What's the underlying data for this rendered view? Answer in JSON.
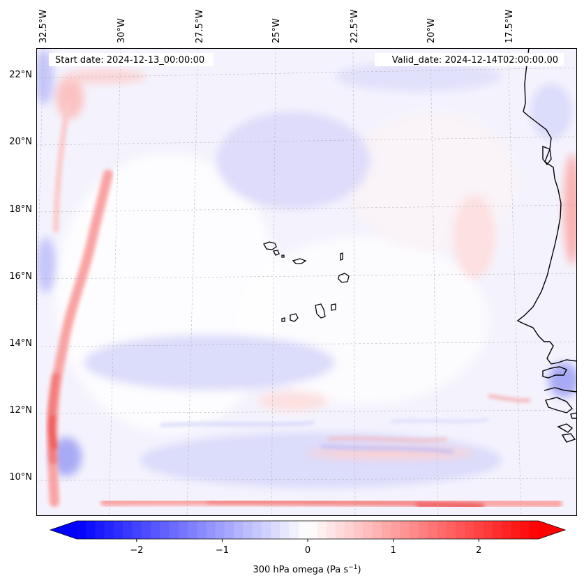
{
  "map": {
    "start_date_text": "Start date: 2024-12-13_00:00:00",
    "valid_date_text": "Valid_date: 2024-12-14T02:00:00.00",
    "lon_labels": [
      "32.5°W",
      "30°W",
      "27.5°W",
      "25°W",
      "22.5°W",
      "20°W",
      "17.5°W"
    ],
    "lat_labels": [
      "22°N",
      "20°N",
      "18°N",
      "16°N",
      "14°N",
      "12°N",
      "10°N"
    ],
    "field_colors": {
      "background": "#f4f3fd",
      "blue_weak": "#dcdcfb",
      "blue_mid": "#b3b3f7",
      "red_weak": "#fde0e0",
      "red_mid": "#fbb0b0",
      "red_strong": "#f47b7b"
    }
  },
  "colorbar": {
    "label_base": "300 hPa omega (Pa s",
    "label_exp": "−1",
    "label_close": ")",
    "ticks": [
      "−2",
      "−1",
      "0",
      "1",
      "2"
    ],
    "tick_values": [
      -2,
      -1,
      0,
      1,
      2
    ],
    "vmin": -2.7,
    "vmax": 2.7,
    "min_color": "#0000ff",
    "mid_color": "#ffffff",
    "max_color": "#ff0000"
  }
}
